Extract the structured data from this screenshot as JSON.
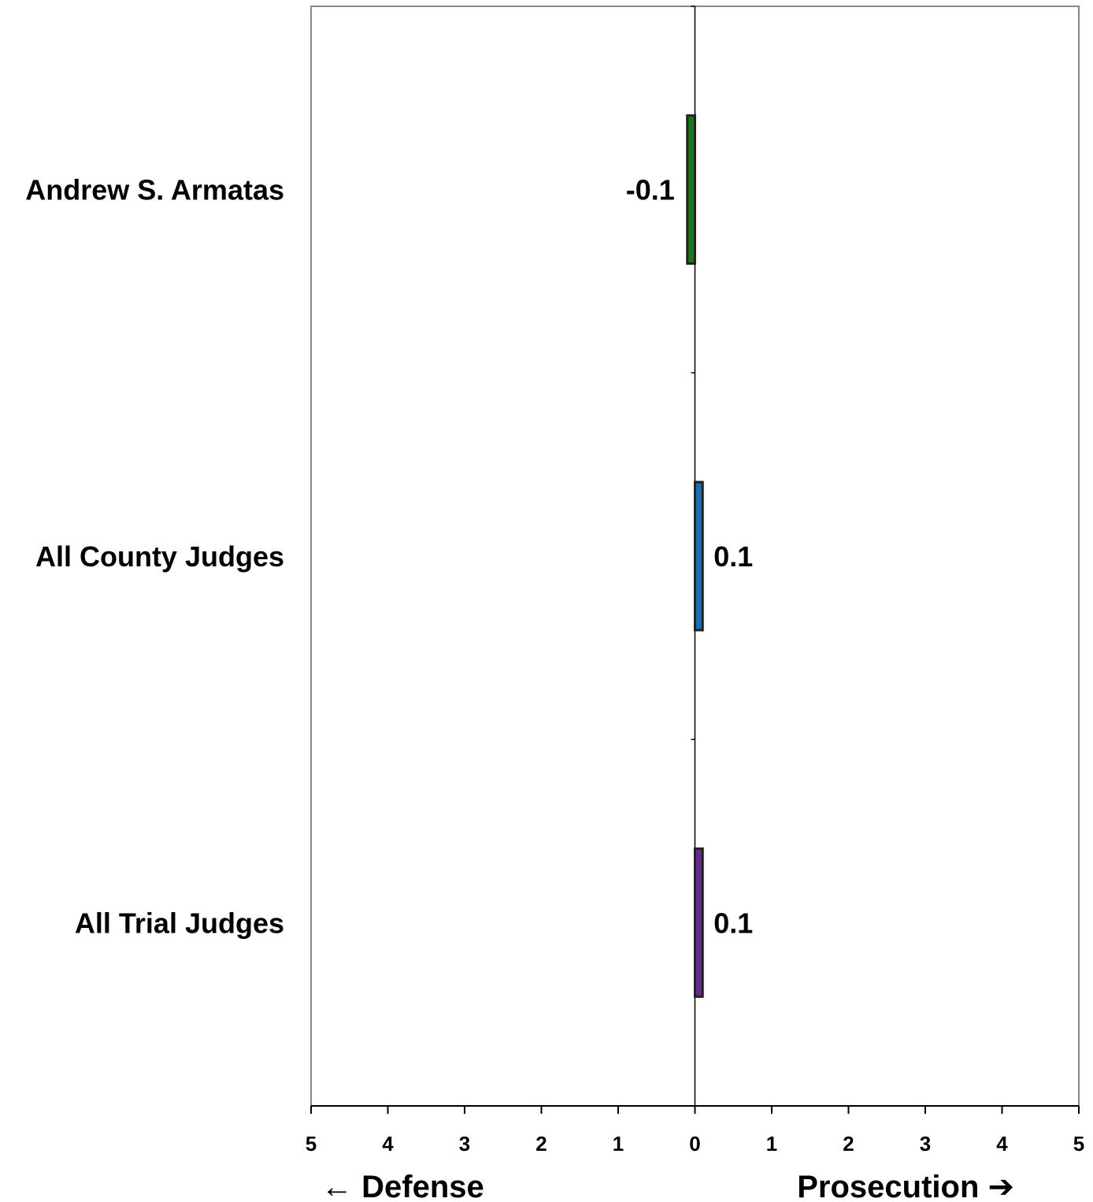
{
  "chart_data": {
    "type": "bar",
    "orientation": "horizontal",
    "categories": [
      "Andrew S. Armatas",
      "All County Judges",
      "All Trial Judges"
    ],
    "values": [
      -0.1,
      0.1,
      0.1
    ],
    "value_labels": [
      "-0.1",
      "0.1",
      "0.1"
    ],
    "colors": [
      "#1a7a1a",
      "#1f6fb0",
      "#6a2c8a"
    ],
    "xlim": [
      -5,
      5
    ],
    "x_ticks": [
      -5,
      -4,
      -3,
      -2,
      -1,
      0,
      1,
      2,
      3,
      4,
      5
    ],
    "x_tick_labels": [
      "5",
      "4",
      "3",
      "2",
      "1",
      "0",
      "1",
      "2",
      "3",
      "4",
      "5"
    ],
    "left_direction_label": "Defense",
    "right_direction_label": "Prosecution",
    "left_arrow": "←",
    "right_arrow": "➔",
    "grid": false,
    "legend": "none"
  }
}
